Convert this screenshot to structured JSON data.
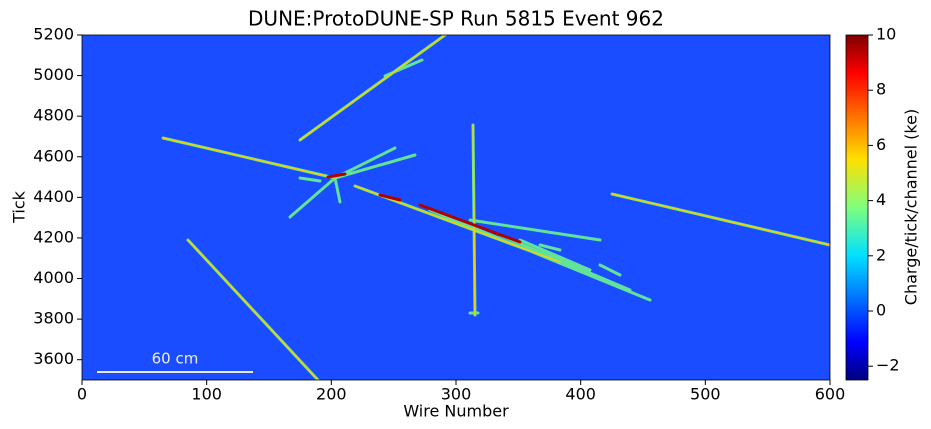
{
  "chart_data": {
    "type": "heatmap",
    "title": "DUNE:ProtoDUNE-SP Run 5815 Event 962",
    "xlabel": "Wire Number",
    "ylabel": "Tick",
    "xlim": [
      0,
      600
    ],
    "xticks": [
      0,
      100,
      200,
      300,
      400,
      500,
      600
    ],
    "ylim": [
      3500,
      5200
    ],
    "yticks": [
      3600,
      3800,
      4000,
      4200,
      4400,
      4600,
      4800,
      5000,
      5200
    ],
    "background_color": "#1a4dff",
    "colormap": "jet",
    "colorbar": {
      "label": "Charge/tick/channel (ke)",
      "lim": [
        -2.5,
        10
      ],
      "ticks": [
        {
          "value": -2,
          "label": "−2"
        },
        0,
        2,
        4,
        6,
        8,
        10
      ]
    },
    "annotation": "60 cm"
  }
}
